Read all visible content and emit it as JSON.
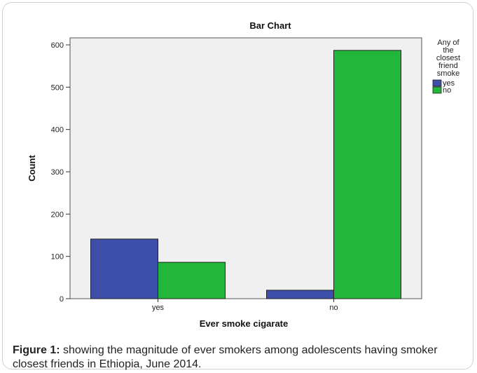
{
  "chart_data": {
    "type": "bar",
    "title": "Bar Chart",
    "xlabel": "Ever smoke cigarate",
    "ylabel": "Count",
    "categories": [
      "yes",
      "no"
    ],
    "series": [
      {
        "name": "yes",
        "values": [
          141,
          20
        ],
        "color": "#3d4fa8"
      },
      {
        "name": "no",
        "values": [
          86,
          587
        ],
        "color": "#22b73a"
      }
    ],
    "ylim": [
      0,
      600
    ],
    "yticks": [
      0,
      100,
      200,
      300,
      400,
      500,
      600
    ],
    "legend": {
      "title_lines": [
        "Any of",
        "the",
        "closest",
        "friend",
        "smoke"
      ],
      "placement": "right"
    },
    "background": "#f0f0f0",
    "grid": false
  },
  "caption": {
    "label": "Figure 1:",
    "text": " showing the magnitude of ever smokers among adolescents having smoker closest friends in Ethiopia, June 2014."
  }
}
